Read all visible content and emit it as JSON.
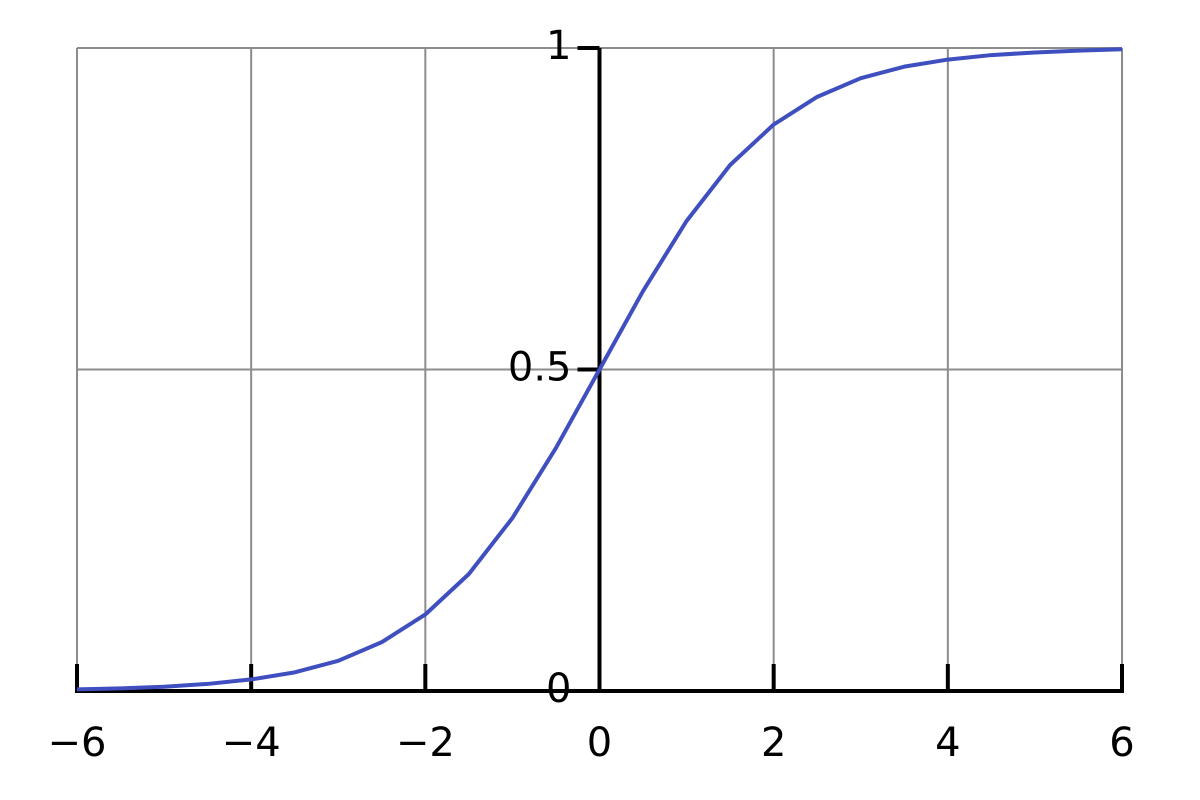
{
  "chart_data": {
    "type": "line",
    "x": [
      -6,
      -5.5,
      -5,
      -4.5,
      -4,
      -3.5,
      -3,
      -2.5,
      -2,
      -1.5,
      -1,
      -0.5,
      0,
      0.5,
      1,
      1.5,
      2,
      2.5,
      3,
      3.5,
      4,
      4.5,
      5,
      5.5,
      6
    ],
    "series": [
      {
        "color": "#3f4fbf",
        "values": [
          0.0025,
          0.004,
          0.0067,
          0.011,
          0.018,
          0.029,
          0.047,
          0.076,
          0.119,
          0.182,
          0.269,
          0.378,
          0.5,
          0.622,
          0.731,
          0.818,
          0.881,
          0.924,
          0.953,
          0.971,
          0.982,
          0.989,
          0.993,
          0.996,
          0.998
        ]
      }
    ],
    "xlim": [
      -6,
      6
    ],
    "ylim": [
      0,
      1
    ],
    "xticks": [
      {
        "value": -6,
        "label": "−6"
      },
      {
        "value": -4,
        "label": "−4"
      },
      {
        "value": -2,
        "label": "−2"
      },
      0,
      2,
      4,
      6
    ],
    "yticks": [
      0,
      0.5,
      1
    ],
    "grid": true
  }
}
